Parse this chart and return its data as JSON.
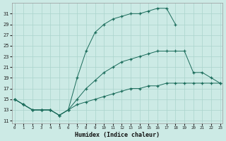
{
  "xlabel": "Humidex (Indice chaleur)",
  "bg_color": "#cceae5",
  "grid_color": "#aad4cc",
  "line_color": "#1a6b5a",
  "curve1": {
    "x": [
      0,
      1,
      2,
      3,
      4,
      5,
      6,
      7,
      8,
      9,
      10,
      11,
      12,
      13,
      14,
      15,
      16,
      17,
      18
    ],
    "y": [
      15,
      14,
      13,
      13,
      13,
      12,
      13,
      19,
      24,
      27.5,
      29,
      30,
      30.5,
      31,
      31,
      31.5,
      32,
      32,
      29
    ]
  },
  "curve2": {
    "x": [
      0,
      1,
      2,
      3,
      4,
      5,
      6,
      7,
      8,
      9,
      10,
      11,
      12,
      13,
      14,
      15,
      16,
      17,
      18,
      19,
      20,
      21,
      22,
      23
    ],
    "y": [
      15,
      14,
      13,
      13,
      13,
      12,
      13,
      15,
      17,
      18.5,
      20,
      21,
      22,
      22.5,
      23,
      23.5,
      24,
      24,
      24,
      24,
      20,
      20,
      19,
      18
    ]
  },
  "curve3": {
    "x": [
      0,
      1,
      2,
      3,
      4,
      5,
      6,
      7,
      8,
      9,
      10,
      11,
      12,
      13,
      14,
      15,
      16,
      17,
      18,
      19,
      20,
      21,
      22,
      23
    ],
    "y": [
      15,
      14,
      13,
      13,
      13,
      12,
      13,
      14,
      14.5,
      15,
      15.5,
      16,
      16.5,
      17,
      17,
      17.5,
      17.5,
      18,
      18,
      18,
      18,
      18,
      18,
      18
    ]
  },
  "xlim": [
    -0.3,
    23.3
  ],
  "ylim": [
    10.5,
    33.0
  ],
  "yticks": [
    11,
    13,
    15,
    17,
    19,
    21,
    23,
    25,
    27,
    29,
    31
  ],
  "xticks": [
    0,
    1,
    2,
    3,
    4,
    5,
    6,
    7,
    8,
    9,
    10,
    11,
    12,
    13,
    14,
    15,
    16,
    17,
    18,
    19,
    20,
    21,
    22,
    23
  ]
}
